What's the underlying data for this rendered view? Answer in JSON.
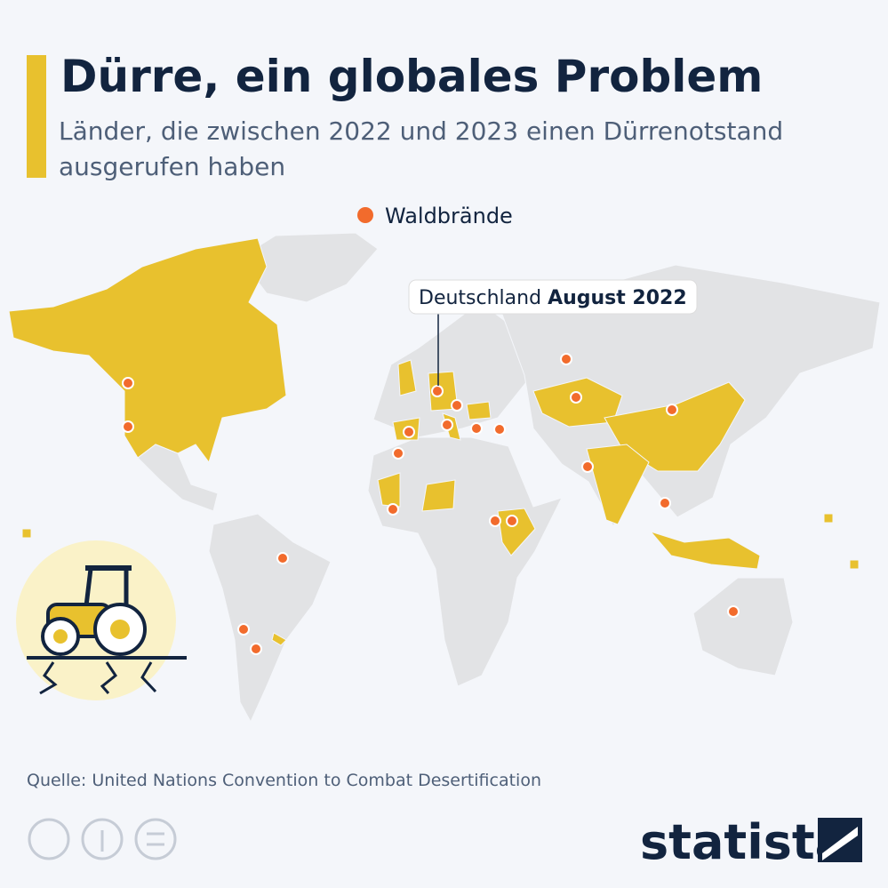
{
  "header": {
    "title": "Dürre, ein globales Problem",
    "subtitle": "Länder, die zwischen 2022 und 2023 einen Dürrenotstand ausgerufen haben"
  },
  "legend": {
    "label": "Waldbrände"
  },
  "callout": {
    "country": "Deutschland",
    "date": "August 2022"
  },
  "footer": {
    "source": "Quelle: United Nations Convention to Combat Desertification",
    "brand": "statista"
  }
}
